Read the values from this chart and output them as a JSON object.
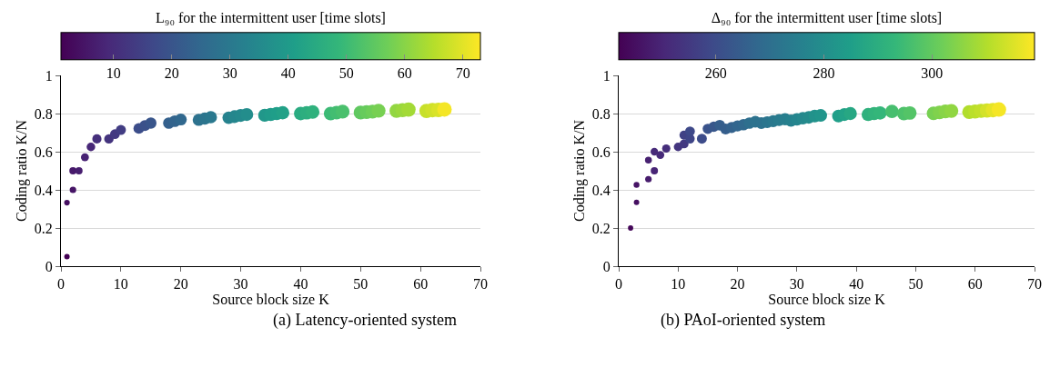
{
  "chart_data": [
    {
      "type": "bubble",
      "sizes": [
        0.14,
        0.15,
        0.2,
        0.25,
        0.25,
        0.3,
        0.35,
        0.4,
        0.42,
        0.45,
        0.48,
        0.55,
        0.57,
        0.6,
        0.62,
        0.65,
        0.67,
        0.7,
        0.72,
        0.73,
        0.75,
        0.77,
        0.78,
        0.8,
        0.8,
        0.82,
        0.83,
        0.84,
        0.85,
        0.86,
        0.87,
        0.88,
        0.89,
        0.9,
        0.9,
        0.91,
        0.92,
        0.93,
        0.94,
        0.95,
        0.96,
        0.97,
        0.98,
        0.99,
        1
      ],
      "clabel": "L₉₀ for the intermittent user [time slots]",
      "xlabel": "Source block size K",
      "ylabel": "Coding ratio K/N",
      "annotations": [
        "(a) Latency-oriented system"
      ],
      "x": [
        1,
        1,
        2,
        2,
        3,
        4,
        5,
        6,
        8,
        9,
        10,
        13,
        14,
        15,
        18,
        19,
        20,
        23,
        24,
        25,
        28,
        29,
        30,
        31,
        34,
        35,
        36,
        37,
        40,
        41,
        42,
        45,
        46,
        47,
        50,
        51,
        52,
        53,
        56,
        57,
        58,
        61,
        62,
        63,
        64
      ],
      "values": [
        0.05,
        0.333,
        0.4,
        0.5,
        0.5,
        0.571,
        0.625,
        0.667,
        0.667,
        0.692,
        0.714,
        0.722,
        0.737,
        0.75,
        0.75,
        0.76,
        0.769,
        0.767,
        0.774,
        0.781,
        0.778,
        0.784,
        0.79,
        0.795,
        0.791,
        0.795,
        0.8,
        0.804,
        0.8,
        0.804,
        0.808,
        0.8,
        0.805,
        0.81,
        0.805,
        0.808,
        0.81,
        0.815,
        0.814,
        0.818,
        0.821,
        0.814,
        0.818,
        0.819,
        0.822
      ],
      "cvalues": [
        1,
        4,
        5,
        6,
        7,
        8,
        9,
        11,
        12,
        13,
        14,
        18,
        19,
        20,
        23,
        24,
        25,
        28,
        29,
        30,
        33,
        34,
        35,
        36,
        39,
        40,
        41,
        42,
        45,
        46,
        47,
        50,
        51,
        52,
        55,
        56,
        57,
        58,
        61,
        62,
        63,
        67,
        68,
        69,
        72
      ],
      "clim": [
        1,
        73
      ],
      "cticks": [
        10,
        20,
        30,
        40,
        50,
        60,
        70
      ],
      "xlim": [
        0,
        70
      ],
      "xticks": [
        0,
        10,
        20,
        30,
        40,
        50,
        60,
        70
      ],
      "ylim": [
        0,
        1
      ],
      "yticks": [
        0,
        0.2,
        0.4,
        0.6,
        0.8,
        1
      ],
      "grid": "y",
      "marker": "circle"
    },
    {
      "type": "bubble",
      "sizes": [
        0.13,
        0.14,
        0.16,
        0.2,
        0.22,
        0.25,
        0.27,
        0.3,
        0.32,
        0.35,
        0.38,
        0.4,
        0.42,
        0.45,
        0.47,
        0.5,
        0.52,
        0.55,
        0.56,
        0.58,
        0.6,
        0.62,
        0.63,
        0.65,
        0.66,
        0.67,
        0.68,
        0.7,
        0.71,
        0.72,
        0.73,
        0.74,
        0.75,
        0.76,
        0.77,
        0.78,
        0.79,
        0.8,
        0.82,
        0.83,
        0.84,
        0.85,
        0.86,
        0.87,
        0.88,
        0.89,
        0.9,
        0.91,
        0.92,
        0.94,
        0.95,
        0.97,
        0.98,
        1
      ],
      "clabel": "Δ₉₀ for the intermittent user [time slots]",
      "xlabel": "Source block size K",
      "ylabel": "Coding ratio K/N",
      "annotations": [
        "(b) PAoI-oriented system"
      ],
      "x": [
        2,
        3,
        3,
        5,
        5,
        6,
        6,
        7,
        8,
        10,
        11,
        11,
        12,
        12,
        14,
        15,
        16,
        17,
        18,
        19,
        20,
        21,
        22,
        23,
        24,
        25,
        26,
        27,
        28,
        29,
        30,
        31,
        32,
        33,
        34,
        37,
        38,
        39,
        42,
        43,
        44,
        46,
        48,
        49,
        53,
        54,
        55,
        56,
        59,
        60,
        61,
        62,
        63,
        64
      ],
      "values": [
        0.2,
        0.334,
        0.426,
        0.456,
        0.556,
        0.5,
        0.6,
        0.583,
        0.617,
        0.625,
        0.641,
        0.687,
        0.668,
        0.707,
        0.668,
        0.72,
        0.731,
        0.739,
        0.719,
        0.727,
        0.735,
        0.742,
        0.75,
        0.757,
        0.75,
        0.755,
        0.76,
        0.766,
        0.77,
        0.763,
        0.77,
        0.776,
        0.78,
        0.787,
        0.79,
        0.787,
        0.795,
        0.8,
        0.795,
        0.8,
        0.803,
        0.811,
        0.8,
        0.803,
        0.801,
        0.806,
        0.811,
        0.814,
        0.808,
        0.811,
        0.814,
        0.816,
        0.818,
        0.821
      ],
      "cvalues": [
        243,
        245,
        246,
        248,
        249,
        250,
        251,
        251,
        252,
        254,
        255,
        257,
        258,
        259,
        260,
        262,
        263,
        265,
        265,
        266,
        267,
        268,
        270,
        271,
        271,
        272,
        273,
        274,
        275,
        276,
        277,
        278,
        279,
        281,
        282,
        285,
        286,
        288,
        291,
        292,
        293,
        296,
        297,
        298,
        303,
        304,
        305,
        306,
        310,
        311,
        312,
        314,
        316,
        318
      ],
      "clim": [
        242,
        319
      ],
      "cticks": [
        260,
        280,
        300
      ],
      "xlim": [
        0,
        70
      ],
      "xticks": [
        0,
        10,
        20,
        30,
        40,
        50,
        60,
        70
      ],
      "ylim": [
        0,
        1
      ],
      "yticks": [
        0,
        0.2,
        0.4,
        0.6,
        0.8,
        1
      ],
      "grid": "y",
      "marker": "circle"
    }
  ]
}
